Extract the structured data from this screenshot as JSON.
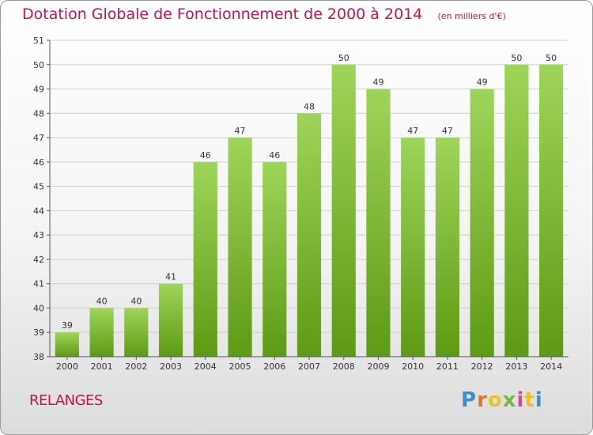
{
  "header": {
    "title": "Dotation Globale de Fonctionnement de 2000 à 2014",
    "unit": "(en milliers d'€)"
  },
  "footer": {
    "commune": "RELANGES",
    "logo": "Proxiti"
  },
  "colors": {
    "title": "#c8114f",
    "bar_top": "#9fd45a",
    "bar_bottom": "#5e9a14",
    "grid": "#cfcfcf",
    "axis_text": "#333333"
  },
  "chart_data": {
    "type": "bar",
    "title": "Dotation Globale de Fonctionnement de 2000 à 2014",
    "xlabel": "",
    "ylabel": "",
    "ylim": [
      38,
      51
    ],
    "yticks": [
      38,
      39,
      40,
      41,
      42,
      43,
      44,
      45,
      46,
      47,
      48,
      49,
      50,
      51
    ],
    "grid": true,
    "categories": [
      "2000",
      "2001",
      "2002",
      "2003",
      "2004",
      "2005",
      "2006",
      "2007",
      "2008",
      "2009",
      "2010",
      "2011",
      "2012",
      "2013",
      "2014"
    ],
    "values": [
      39,
      40,
      40,
      41,
      46,
      47,
      46,
      48,
      50,
      49,
      47,
      47,
      49,
      50,
      50
    ]
  }
}
